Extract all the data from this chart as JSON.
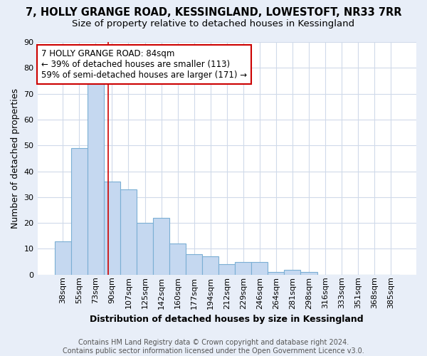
{
  "title": "7, HOLLY GRANGE ROAD, KESSINGLAND, LOWESTOFT, NR33 7RR",
  "subtitle": "Size of property relative to detached houses in Kessingland",
  "xlabel": "Distribution of detached houses by size in Kessingland",
  "ylabel": "Number of detached properties",
  "categories": [
    "38sqm",
    "55sqm",
    "73sqm",
    "90sqm",
    "107sqm",
    "125sqm",
    "142sqm",
    "160sqm",
    "177sqm",
    "194sqm",
    "212sqm",
    "229sqm",
    "246sqm",
    "264sqm",
    "281sqm",
    "298sqm",
    "316sqm",
    "333sqm",
    "351sqm",
    "368sqm",
    "385sqm"
  ],
  "values": [
    13,
    49,
    74,
    36,
    33,
    20,
    22,
    12,
    8,
    7,
    4,
    5,
    5,
    1,
    2,
    1,
    0,
    0,
    0,
    0,
    0
  ],
  "bar_color": "#c5d8f0",
  "bar_edge_color": "#7bafd4",
  "plot_bg_color": "#ffffff",
  "fig_bg_color": "#e8eef8",
  "grid_color": "#d0daea",
  "red_line_x": 2.75,
  "annotation_line1": "7 HOLLY GRANGE ROAD: 84sqm",
  "annotation_line2": "← 39% of detached houses are smaller (113)",
  "annotation_line3": "59% of semi-detached houses are larger (171) →",
  "annotation_box_color": "#ffffff",
  "annotation_box_edge_color": "#cc0000",
  "footer_text": "Contains HM Land Registry data © Crown copyright and database right 2024.\nContains public sector information licensed under the Open Government Licence v3.0.",
  "ylim": [
    0,
    90
  ],
  "yticks": [
    0,
    10,
    20,
    30,
    40,
    50,
    60,
    70,
    80,
    90
  ],
  "title_fontsize": 10.5,
  "subtitle_fontsize": 9.5,
  "xlabel_fontsize": 9,
  "ylabel_fontsize": 9,
  "tick_fontsize": 8,
  "annotation_fontsize": 8.5,
  "footer_fontsize": 7
}
